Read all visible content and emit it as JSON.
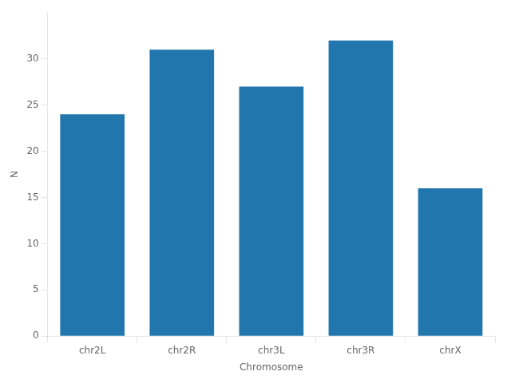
{
  "chart_data": {
    "type": "bar",
    "categories": [
      "chr2L",
      "chr2R",
      "chr3L",
      "chr3R",
      "chrX"
    ],
    "values": [
      24,
      31,
      27,
      32,
      16
    ],
    "color": "#2176ae",
    "xlabel": "Chromosome",
    "ylabel": "N",
    "ylim": [
      0,
      35
    ],
    "yticks": [
      0,
      5,
      10,
      15,
      20,
      25,
      30
    ],
    "grid": false
  }
}
